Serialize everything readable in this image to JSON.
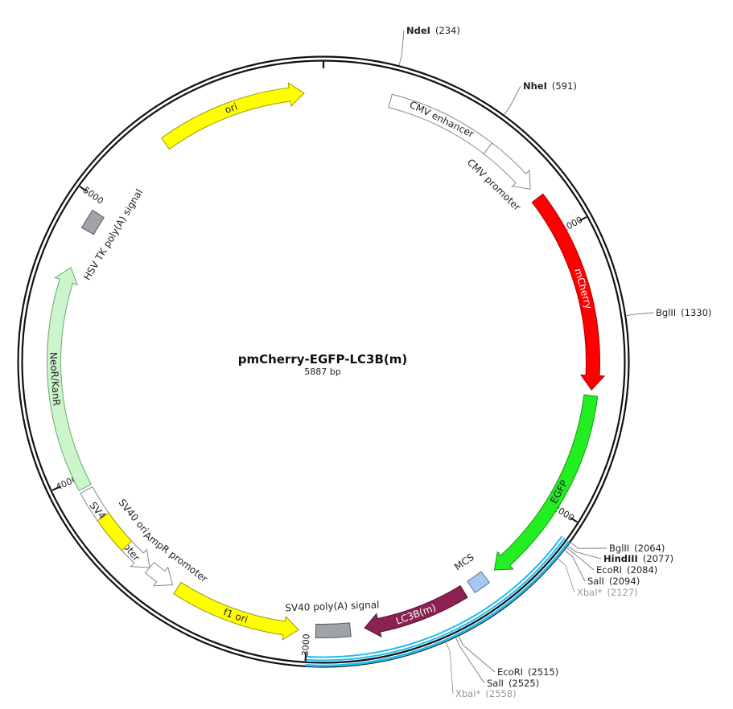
{
  "plasmid": {
    "name": "pmCherry-EGFP-LC3B(m)",
    "size_label": "5887 bp",
    "length": 5887
  },
  "features": [
    {
      "name": "CMV enhancer",
      "start": 235,
      "end": 615,
      "color": "#ffffff",
      "stroke": "#888888",
      "arrow": "none",
      "label_color": "#222222"
    },
    {
      "name": "CMV promoter",
      "start": 615,
      "end": 820,
      "color": "#ffffff",
      "stroke": "#888888",
      "arrow": "end",
      "label_color": "#222222"
    },
    {
      "name": "mCherry",
      "start": 860,
      "end": 1570,
      "color": "#ff0000",
      "stroke": "#aa0000",
      "arrow": "end",
      "label_color": "#ffffff"
    },
    {
      "name": "EGFP",
      "start": 1590,
      "end": 2300,
      "color": "#22ee22",
      "stroke": "#119911",
      "arrow": "end",
      "label_color": "#222222"
    },
    {
      "name": "MCS",
      "start": 2340,
      "end": 2400,
      "color": "#a8c8f0",
      "stroke": "#5577aa",
      "arrow": "none",
      "label_color": "#222222"
    },
    {
      "name": "LC3B(m)",
      "start": 2430,
      "end": 2800,
      "color": "#8b2252",
      "stroke": "#55102f",
      "arrow": "end",
      "label_color": "#ffffff"
    },
    {
      "name": "SV40 poly(A) signal",
      "start": 2850,
      "end": 2970,
      "color": "#a0a4aa",
      "stroke": "#555555",
      "arrow": "none",
      "label_color": "#222222"
    },
    {
      "name": "f1 ori",
      "start": 3030,
      "end": 3480,
      "color": "#ffff00",
      "stroke": "#999900",
      "arrow": "start",
      "label_color": "#222222"
    },
    {
      "name": "AmpR promoter",
      "start": 3500,
      "end": 3600,
      "color": "#ffffff",
      "stroke": "#888888",
      "arrow": "start",
      "label_color": "#222222"
    },
    {
      "name": "SV40 promoter",
      "start": 3600,
      "end": 3950,
      "color": "#ffffff",
      "stroke": "#888888",
      "arrow": "start",
      "label_color": "#222222"
    },
    {
      "name": "SV40 ori",
      "start": 3710,
      "end": 3840,
      "color": "#ffff00",
      "stroke": "#999900",
      "arrow": "none",
      "label_color": "#222222"
    },
    {
      "name": "NeoR/KanR",
      "start": 3960,
      "end": 4750,
      "color": "#ccf5cc",
      "stroke": "#66aa66",
      "arrow": "end",
      "label_color": "#222222"
    },
    {
      "name": "HSV TK poly(A) signal",
      "start": 4890,
      "end": 4960,
      "color": "#a0a4aa",
      "stroke": "#555555",
      "arrow": "none",
      "label_color": "#222222"
    },
    {
      "name": "ori",
      "start": 5300,
      "end": 5820,
      "color": "#ffff00",
      "stroke": "#999900",
      "arrow": "end",
      "label_color": "#222222"
    }
  ],
  "insert_regions": [
    {
      "name": "insert-region-1",
      "start": 2064,
      "end": 3000,
      "color": "#22bbee"
    }
  ],
  "sites": [
    {
      "name": "NdeI",
      "position": "(234)",
      "pos": 234,
      "style": "bold"
    },
    {
      "name": "NheI",
      "position": "(591)",
      "pos": 591,
      "style": "bold"
    },
    {
      "name": "BglII",
      "position": "(1330)",
      "pos": 1330,
      "style": "normal"
    },
    {
      "name": "BglII",
      "position": "(2064)",
      "pos": 2064,
      "style": "normal"
    },
    {
      "name": "HindIII",
      "position": "(2077)",
      "pos": 2077,
      "style": "bold"
    },
    {
      "name": "EcoRI",
      "position": "(2084)",
      "pos": 2084,
      "style": "normal"
    },
    {
      "name": "SalI",
      "position": "(2094)",
      "pos": 2094,
      "style": "normal"
    },
    {
      "name": "XbaI*",
      "position": "(2127)",
      "pos": 2127,
      "style": "gray"
    },
    {
      "name": "EcoRI",
      "position": "(2515)",
      "pos": 2515,
      "style": "normal"
    },
    {
      "name": "SalI",
      "position": "(2525)",
      "pos": 2525,
      "style": "normal"
    },
    {
      "name": "XbaI*",
      "position": "(2558)",
      "pos": 2558,
      "style": "gray"
    }
  ],
  "ticks": [
    {
      "label": "1000",
      "pos": 1000
    },
    {
      "label": "2000",
      "pos": 2000
    },
    {
      "label": "3000",
      "pos": 3000
    },
    {
      "label": "4000",
      "pos": 4000
    },
    {
      "label": "5000",
      "pos": 5000
    }
  ]
}
